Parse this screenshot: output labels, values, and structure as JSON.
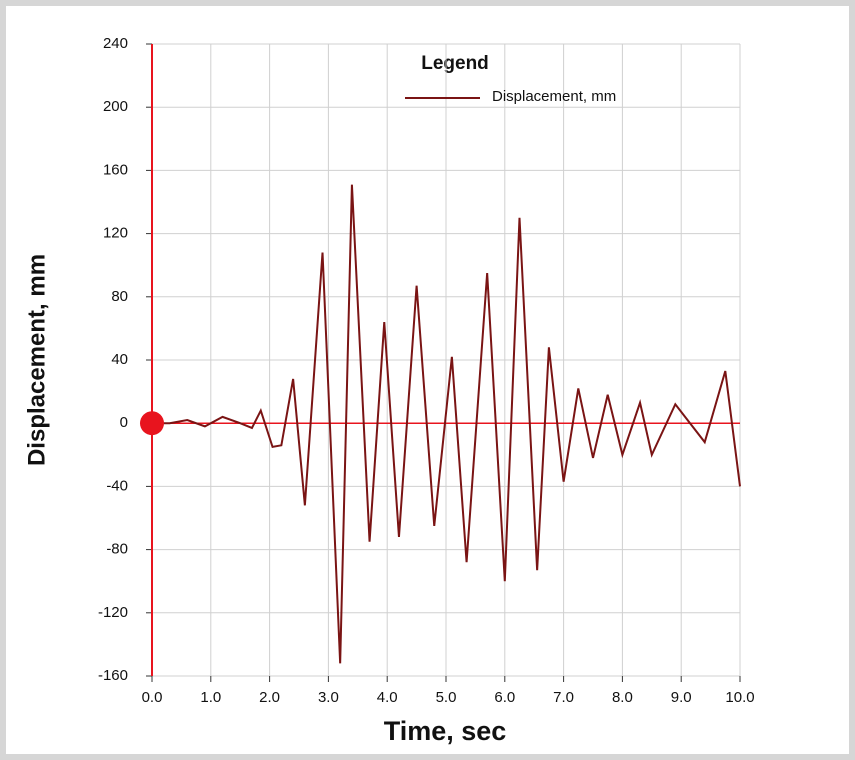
{
  "chart_data": {
    "type": "line",
    "xlabel": "Time,  sec",
    "ylabel": "Displacement, mm",
    "legend_title": "Legend",
    "x": [
      0,
      0.3,
      0.6,
      0.9,
      1.2,
      1.5,
      1.7,
      1.85,
      2.05,
      2.2,
      2.4,
      2.6,
      2.9,
      3.2,
      3.4,
      3.7,
      3.95,
      4.2,
      4.5,
      4.8,
      5.1,
      5.35,
      5.7,
      6.0,
      6.25,
      6.55,
      6.75,
      7.0,
      7.25,
      7.5,
      7.75,
      8.0,
      8.3,
      8.5,
      8.9,
      9.4,
      9.75,
      10.0
    ],
    "series": [
      {
        "name": "Displacement, mm",
        "color": "#7a1414",
        "values": [
          0,
          0,
          2,
          -2,
          4,
          0,
          -3,
          8,
          -15,
          -14,
          28,
          -52,
          108,
          -152,
          151,
          -75,
          64,
          -72,
          87,
          -65,
          42,
          -88,
          95,
          -100,
          130,
          -93,
          48,
          -37,
          22,
          -22,
          18,
          -20,
          13,
          -20,
          12,
          -12,
          33,
          -40
        ]
      }
    ],
    "xlim": [
      0,
      10
    ],
    "xticks": [
      {
        "value": 0,
        "label": "0.0"
      },
      {
        "value": 1,
        "label": "1.0"
      },
      {
        "value": 2,
        "label": "2.0"
      },
      {
        "value": 3,
        "label": "3.0"
      },
      {
        "value": 4,
        "label": "4.0"
      },
      {
        "value": 5,
        "label": "5.0"
      },
      {
        "value": 6,
        "label": "6.0"
      },
      {
        "value": 7,
        "label": "7.0"
      },
      {
        "value": 8,
        "label": "8.0"
      },
      {
        "value": 9,
        "label": "9.0"
      },
      {
        "value": 10,
        "label": "10.0"
      }
    ],
    "ylim": [
      -160,
      240
    ],
    "yticks": [
      -160,
      -120,
      -80,
      -40,
      0,
      40,
      80,
      120,
      160,
      200,
      240
    ],
    "grid": true,
    "legend": "upper right",
    "axis_color": "#e8141e"
  }
}
